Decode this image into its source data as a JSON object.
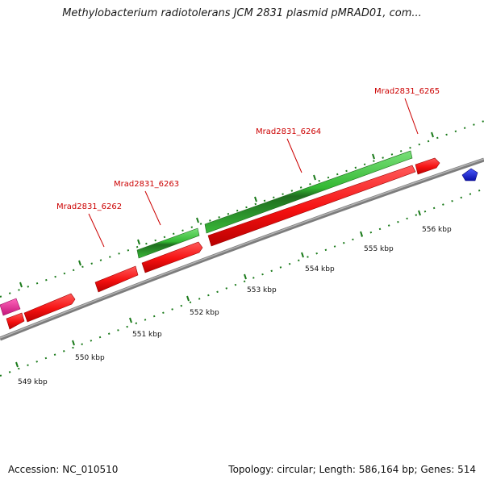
{
  "title": "Methylobacterium radiotolerans JCM 2831 plasmid pMRAD01, com...",
  "footer": {
    "accession": "Accession: NC_010510",
    "stats": "Topology: circular; Length: 586,164 bp; Genes: 514"
  },
  "colors": {
    "backbone": "#7d7d7d",
    "tick": "#1a7a1a",
    "gene_red": "#ff1a1a",
    "gene_green": "#33bb33",
    "gene_pink": "#ee2288",
    "gene_blue": "#1122dd",
    "label_red": "#cc0000"
  },
  "kbp_labels": [
    "549 kbp",
    "550 kbp",
    "551 kbp",
    "552 kbp",
    "553 kbp",
    "554 kbp",
    "555 kbp",
    "556 kbp"
  ],
  "gene_labels": [
    "Mrad2831_6262",
    "Mrad2831_6263",
    "Mrad2831_6264",
    "Mrad2831_6265"
  ],
  "features": [
    {
      "strand": "minus",
      "color": "red"
    },
    {
      "strand": "plus",
      "color": "pink"
    },
    {
      "strand": "plus",
      "color": "red"
    },
    {
      "strand": "plus",
      "color": "red"
    },
    {
      "strand": "minus",
      "color": "red"
    },
    {
      "strand": "minus",
      "color": "green"
    },
    {
      "strand": "minus",
      "color": "red"
    },
    {
      "strand": "minus",
      "color": "green"
    },
    {
      "strand": "plus",
      "color": "red"
    },
    {
      "strand": "minus",
      "color": "blue"
    }
  ]
}
